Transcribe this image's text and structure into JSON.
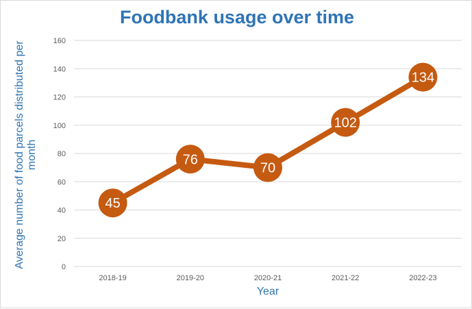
{
  "colors": {
    "title": "#2E74B5",
    "series": "#C55A11",
    "grid": "#D9D9D9",
    "tick": "#595959",
    "axis_title": "#2E74B5"
  },
  "chart_data": {
    "type": "line",
    "title": "Foodbank usage over time",
    "xlabel": "Year",
    "ylabel": "Average number of food parcels distributed per month",
    "categories": [
      "2018-19",
      "2019-20",
      "2020-21",
      "2021-22",
      "2022-23"
    ],
    "series": [
      {
        "values": [
          45,
          76,
          70,
          102,
          134
        ]
      }
    ],
    "data_labels": [
      "45",
      "76",
      "70",
      "102",
      "134"
    ],
    "ylim": [
      0,
      160
    ],
    "yticks": [
      0,
      20,
      40,
      60,
      80,
      100,
      120,
      140,
      160
    ],
    "ytick_labels": [
      "0",
      "20",
      "40",
      "60",
      "80",
      "100",
      "120",
      "140",
      "160"
    ],
    "grid": true,
    "legend": "none"
  }
}
